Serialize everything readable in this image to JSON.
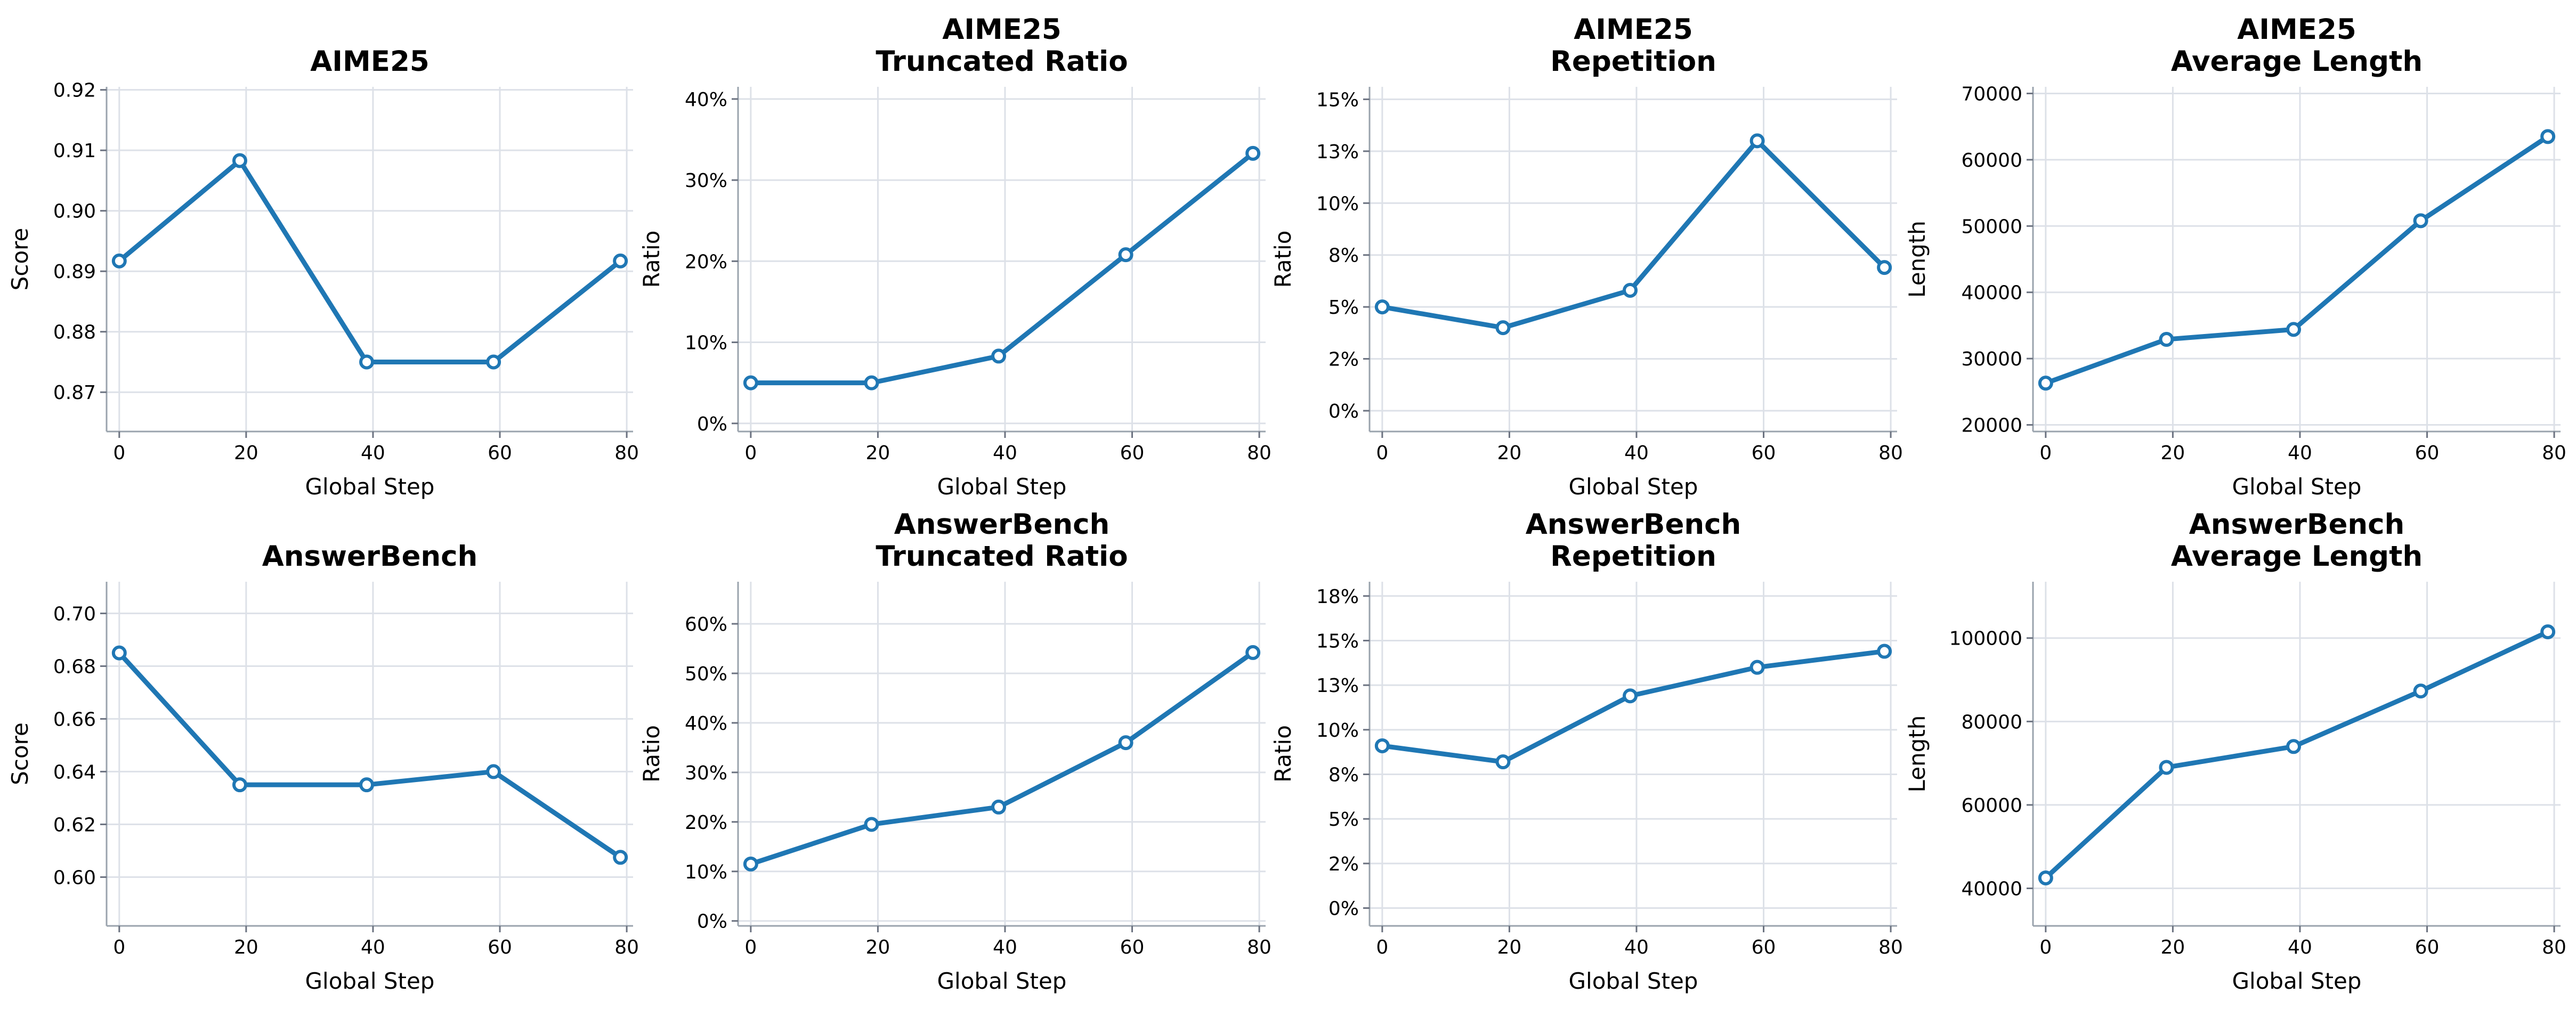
{
  "chart_data": [
    {
      "type": "line",
      "title": "AIME25",
      "xlabel": "Global Step",
      "ylabel": "Score",
      "x": [
        0,
        19,
        39,
        59,
        79
      ],
      "series": [
        {
          "values": [
            0.8917,
            0.9083,
            0.875,
            0.875,
            0.8917
          ]
        }
      ],
      "xlim": [
        -2,
        81
      ],
      "xticks": [
        0,
        20,
        40,
        60,
        80
      ],
      "ylim": [
        0.8635,
        0.9205
      ],
      "yticks": [
        0.87,
        0.88,
        0.89,
        0.9,
        0.91,
        0.92
      ],
      "ytick_labels": [
        "0.87",
        "0.88",
        "0.89",
        "0.90",
        "0.91",
        "0.92"
      ],
      "grid": true
    },
    {
      "type": "line",
      "title": "AIME25\nTruncated Ratio",
      "xlabel": "Global Step",
      "ylabel": "Ratio",
      "x": [
        0,
        19,
        39,
        59,
        79
      ],
      "series": [
        {
          "values": [
            5,
            5,
            8.3,
            20.8,
            33.3
          ]
        }
      ],
      "xlim": [
        -2,
        81
      ],
      "xticks": [
        0,
        20,
        40,
        60,
        80
      ],
      "ylim": [
        -1,
        41.5
      ],
      "yticks": [
        0,
        10,
        20,
        30,
        40
      ],
      "ytick_labels": [
        "0%",
        "10%",
        "20%",
        "30%",
        "40%"
      ],
      "grid": true
    },
    {
      "type": "line",
      "title": "AIME25\nRepetition",
      "xlabel": "Global Step",
      "ylabel": "Ratio",
      "x": [
        0,
        19,
        39,
        59,
        79
      ],
      "series": [
        {
          "values": [
            5,
            4,
            5.8,
            13,
            6.9
          ]
        }
      ],
      "xlim": [
        -2,
        81
      ],
      "xticks": [
        0,
        20,
        40,
        60,
        80
      ],
      "ylim": [
        -1,
        15.6
      ],
      "yticks": [
        0,
        2.5,
        5,
        7.5,
        10,
        12.5,
        15
      ],
      "ytick_labels": [
        "0%",
        "2%",
        "5%",
        "8%",
        "10%",
        "13%",
        "15%"
      ],
      "grid": true
    },
    {
      "type": "line",
      "title": "AIME25\nAverage Length",
      "xlabel": "Global Step",
      "ylabel": "Length",
      "x": [
        0,
        19,
        39,
        59,
        79
      ],
      "series": [
        {
          "values": [
            26300,
            32900,
            34400,
            50800,
            63500
          ]
        }
      ],
      "xlim": [
        -2,
        81
      ],
      "xticks": [
        0,
        20,
        40,
        60,
        80
      ],
      "ylim": [
        19000,
        71000
      ],
      "yticks": [
        20000,
        30000,
        40000,
        50000,
        60000,
        70000
      ],
      "ytick_labels": [
        "20000",
        "30000",
        "40000",
        "50000",
        "60000",
        "70000"
      ],
      "grid": true
    },
    {
      "type": "line",
      "title": "AnswerBench",
      "xlabel": "Global Step",
      "ylabel": "Score",
      "x": [
        0,
        19,
        39,
        59,
        79
      ],
      "series": [
        {
          "values": [
            0.685,
            0.635,
            0.635,
            0.64,
            0.6075
          ]
        }
      ],
      "xlim": [
        -2,
        81
      ],
      "xticks": [
        0,
        20,
        40,
        60,
        80
      ],
      "ylim": [
        0.5815,
        0.712
      ],
      "yticks": [
        0.6,
        0.62,
        0.64,
        0.66,
        0.68,
        0.7
      ],
      "ytick_labels": [
        "0.60",
        "0.62",
        "0.64",
        "0.66",
        "0.68",
        "0.70"
      ],
      "grid": true
    },
    {
      "type": "line",
      "title": "AnswerBench\nTruncated Ratio",
      "xlabel": "Global Step",
      "ylabel": "Ratio",
      "x": [
        0,
        19,
        39,
        59,
        79
      ],
      "series": [
        {
          "values": [
            11.5,
            19.5,
            23,
            36,
            54.2
          ]
        }
      ],
      "xlim": [
        -2,
        81
      ],
      "xticks": [
        0,
        20,
        40,
        60,
        80
      ],
      "ylim": [
        -1,
        68.5
      ],
      "yticks": [
        0,
        10,
        20,
        30,
        40,
        50,
        60
      ],
      "ytick_labels": [
        "0%",
        "10%",
        "20%",
        "30%",
        "40%",
        "50%",
        "60%"
      ],
      "grid": true
    },
    {
      "type": "line",
      "title": "AnswerBench\nRepetition",
      "xlabel": "Global Step",
      "ylabel": "Ratio",
      "x": [
        0,
        19,
        39,
        59,
        79
      ],
      "series": [
        {
          "values": [
            9.1,
            8.2,
            11.9,
            13.5,
            14.4
          ]
        }
      ],
      "xlim": [
        -2,
        81
      ],
      "xticks": [
        0,
        20,
        40,
        60,
        80
      ],
      "ylim": [
        -1,
        18.3
      ],
      "yticks": [
        0,
        2.5,
        5,
        7.5,
        10,
        12.5,
        15,
        17.5
      ],
      "ytick_labels": [
        "0%",
        "2%",
        "5%",
        "8%",
        "10%",
        "13%",
        "15%",
        "18%"
      ],
      "grid": true
    },
    {
      "type": "line",
      "title": "AnswerBench\nAverage Length",
      "xlabel": "Global Step",
      "ylabel": "Length",
      "x": [
        0,
        19,
        39,
        59,
        79
      ],
      "series": [
        {
          "values": [
            42500,
            69000,
            74000,
            87300,
            101500
          ]
        }
      ],
      "xlim": [
        -2,
        81
      ],
      "xticks": [
        0,
        20,
        40,
        60,
        80
      ],
      "ylim": [
        31000,
        113500
      ],
      "yticks": [
        40000,
        60000,
        80000,
        100000
      ],
      "ytick_labels": [
        "40000",
        "60000",
        "80000",
        "100000"
      ],
      "grid": true
    }
  ],
  "colors": {
    "line": "#1f77b4",
    "marker_fill": "#ffffff",
    "grid": "#dde1e8",
    "spine": "#9aa3ad"
  }
}
